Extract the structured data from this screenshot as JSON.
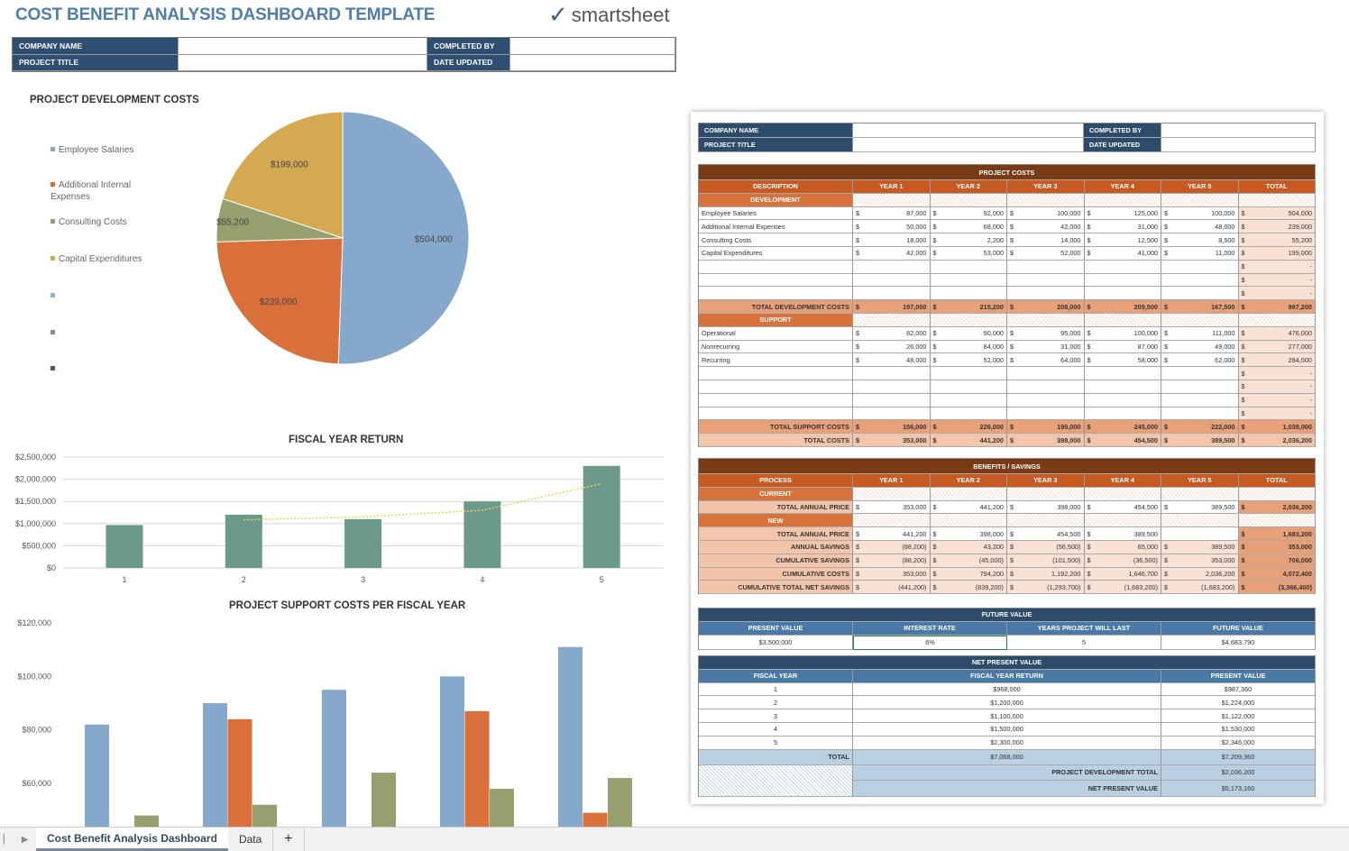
{
  "header": {
    "title": "COST BENEFIT ANALYSIS DASHBOARD TEMPLATE",
    "logo": "smartsheet",
    "info": {
      "company_name": "COMPANY NAME",
      "project_title": "PROJECT TITLE",
      "completed_by": "COMPLETED BY",
      "date_updated": "DATE UPDATED"
    }
  },
  "colors": {
    "blue": "#86a9cb",
    "orange": "#d96f3a",
    "green": "#95a06e",
    "gold": "#d4a951",
    "teal": "#6b9a8d",
    "trend": "#e8d44d"
  },
  "chart_data": [
    {
      "type": "pie",
      "title": "PROJECT DEVELOPMENT COSTS",
      "labels": [
        "Employee Salaries",
        "Additional Internal Expenses",
        "Consulting Costs",
        "Capital Expenditures"
      ],
      "values": [
        504000,
        239000,
        55200,
        199000
      ],
      "data_labels": [
        "$504,000",
        "$239,000",
        "$55,200",
        "$199,000"
      ],
      "legend": "left"
    },
    {
      "type": "bar",
      "title": "FISCAL YEAR RETURN",
      "categories": [
        "1",
        "2",
        "3",
        "4",
        "5"
      ],
      "values": [
        968000,
        1200000,
        1100000,
        1500000,
        2300000
      ],
      "trendline": {
        "type": "moving-average",
        "period": 2,
        "style": "dotted"
      },
      "ylim": [
        0,
        2500000
      ],
      "yticks": [
        "$0",
        "$500,000",
        "$1,000,000",
        "$1,500,000",
        "$2,000,000",
        "$2,500,000"
      ],
      "grid": true
    },
    {
      "type": "bar",
      "title": "PROJECT SUPPORT COSTS PER FISCAL YEAR",
      "categories": [
        "1",
        "2",
        "3",
        "4",
        "5"
      ],
      "series": [
        {
          "values": [
            82000,
            90000,
            95000,
            100000,
            111000
          ]
        },
        {
          "values": [
            26000,
            84000,
            31000,
            87000,
            49000
          ]
        },
        {
          "values": [
            48000,
            52000,
            64000,
            58000,
            62000
          ]
        }
      ],
      "ylim_visible": [
        60000,
        120000
      ],
      "yticks": [
        "$60,000",
        "$80,000",
        "$100,000",
        "$120,000"
      ]
    }
  ],
  "sheet": {
    "info": {
      "company_name": "COMPANY NAME",
      "project_title": "PROJECT TITLE",
      "completed_by": "COMPLETED BY",
      "date_updated": "DATE UPDATED"
    },
    "project_costs": {
      "title": "PROJECT COSTS",
      "headers": [
        "DESCRIPTION",
        "YEAR 1",
        "YEAR 2",
        "YEAR 3",
        "YEAR 4",
        "YEAR 5",
        "TOTAL"
      ],
      "sections": [
        {
          "label": "DEVELOPMENT",
          "rows": [
            [
              "Employee Salaries",
              "87,000",
              "92,000",
              "100,000",
              "125,000",
              "100,000",
              "504,000"
            ],
            [
              "Additional Internal Expenses",
              "50,000",
              "68,000",
              "42,000",
              "31,000",
              "48,000",
              "239,000"
            ],
            [
              "Consulting Costs",
              "18,000",
              "2,200",
              "14,000",
              "12,500",
              "8,500",
              "55,200"
            ],
            [
              "Capital Expenditures",
              "42,000",
              "53,000",
              "52,000",
              "41,000",
              "11,000",
              "199,000"
            ]
          ],
          "blank_rows": 3,
          "total": [
            "TOTAL DEVELOPMENT COSTS",
            "197,000",
            "215,200",
            "208,000",
            "209,500",
            "167,500",
            "997,200"
          ]
        },
        {
          "label": "SUPPORT",
          "rows": [
            [
              "Operational",
              "82,000",
              "90,000",
              "95,000",
              "100,000",
              "111,000",
              "476,000"
            ],
            [
              "Nonrecurring",
              "26,000",
              "84,000",
              "31,000",
              "87,000",
              "49,000",
              "277,000"
            ],
            [
              "Recurring",
              "48,000",
              "52,000",
              "64,000",
              "58,000",
              "62,000",
              "284,000"
            ]
          ],
          "blank_rows": 4,
          "total": [
            "TOTAL SUPPORT COSTS",
            "156,000",
            "226,000",
            "190,000",
            "245,000",
            "222,000",
            "1,039,000"
          ]
        }
      ],
      "grand_total": [
        "TOTAL COSTS",
        "353,000",
        "441,200",
        "398,000",
        "454,500",
        "389,500",
        "2,036,200"
      ]
    },
    "benefits": {
      "title": "BENEFITS / SAVINGS",
      "headers": [
        "PROCESS",
        "YEAR 1",
        "YEAR 2",
        "YEAR 3",
        "YEAR 4",
        "YEAR 5",
        "TOTAL"
      ],
      "current_label": "CURRENT",
      "current": [
        "TOTAL ANNUAL PRICE",
        "353,000",
        "441,200",
        "398,000",
        "454,500",
        "389,500",
        "2,036,200"
      ],
      "new_label": "NEW",
      "new": [
        "TOTAL ANNUAL PRICE",
        "441,200",
        "398,000",
        "454,500",
        "389,500",
        null,
        "1,683,200"
      ],
      "rows": [
        [
          "ANNUAL SAVINGS",
          "(88,200)",
          "43,200",
          "(56,500)",
          "65,000",
          "389,500",
          "353,000"
        ],
        [
          "CUMULATIVE SAVINGS",
          "(88,200)",
          "(45,000)",
          "(101,500)",
          "(36,500)",
          "353,000",
          "706,000"
        ],
        [
          "CUMULATIVE COSTS",
          "353,000",
          "794,200",
          "1,192,200",
          "1,646,700",
          "2,036,200",
          "4,072,400"
        ],
        [
          "CUMULATIVE TOTAL NET SAVINGS",
          "(441,200)",
          "(839,200)",
          "(1,293,700)",
          "(1,683,200)",
          "(1,683,200)",
          "(3,366,400)"
        ]
      ]
    },
    "future_value": {
      "title": "FUTURE VALUE",
      "headers": [
        "PRESENT VALUE",
        "INTEREST RATE",
        "YEARS PROJECT WILL LAST",
        "FUTURE VALUE"
      ],
      "values": [
        "$3,500,000",
        "6%",
        "5",
        "$4,683,790"
      ]
    },
    "npv": {
      "title": "NET PRESENT VALUE",
      "headers": [
        "FISCAL YEAR",
        "FISCAL YEAR RETURN",
        "PRESENT VALUE"
      ],
      "rows": [
        [
          "1",
          "$968,000",
          "$987,360"
        ],
        [
          "2",
          "$1,200,000",
          "$1,224,000"
        ],
        [
          "3",
          "$1,100,000",
          "$1,122,000"
        ],
        [
          "4",
          "$1,500,000",
          "$1,530,000"
        ],
        [
          "5",
          "$2,300,000",
          "$2,346,000"
        ]
      ],
      "total": [
        "TOTAL",
        "$7,068,000",
        "$7,209,360"
      ],
      "dev_total": [
        "PROJECT DEVELOPMENT TOTAL",
        "$2,036,200"
      ],
      "net": [
        "NET PRESENT VALUE",
        "$5,173,160"
      ]
    }
  },
  "tabs": {
    "items": [
      "Cost Benefit Analysis Dashboard",
      "Data"
    ],
    "add": "+"
  }
}
